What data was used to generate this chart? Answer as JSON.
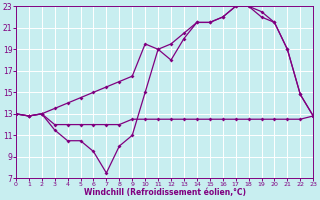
{
  "xlabel": "Windchill (Refroidissement éolien,°C)",
  "bg_color": "#c8eef0",
  "line_color": "#800080",
  "xmin": 0,
  "xmax": 23,
  "ymin": 7,
  "ymax": 23,
  "yticks": [
    7,
    9,
    11,
    13,
    15,
    17,
    19,
    21,
    23
  ],
  "xticks": [
    0,
    1,
    2,
    3,
    4,
    5,
    6,
    7,
    8,
    9,
    10,
    11,
    12,
    13,
    14,
    15,
    16,
    17,
    18,
    19,
    20,
    21,
    22,
    23
  ],
  "curve1_x": [
    0,
    1,
    2,
    3,
    4,
    5,
    6,
    7,
    8,
    9,
    10,
    11,
    12,
    13,
    14,
    15,
    16,
    17,
    18,
    19,
    20,
    21,
    22,
    23
  ],
  "curve1_y": [
    13,
    12.8,
    13,
    13.5,
    14,
    14.5,
    15,
    15.5,
    16,
    16.5,
    19.5,
    19,
    19.5,
    20.5,
    21.5,
    21.5,
    22,
    23,
    23,
    22.5,
    21.5,
    19,
    14.8,
    12.8
  ],
  "curve2_x": [
    0,
    1,
    2,
    3,
    4,
    5,
    6,
    7,
    8,
    9,
    10,
    11,
    12,
    13,
    14,
    15,
    16,
    17,
    18,
    19,
    20,
    21,
    22,
    23
  ],
  "curve2_y": [
    13,
    12.8,
    13,
    12,
    12,
    12,
    12,
    12,
    12,
    12.5,
    12.5,
    12.5,
    12.5,
    12.5,
    12.5,
    12.5,
    12.5,
    12.5,
    12.5,
    12.5,
    12.5,
    12.5,
    12.5,
    12.8
  ],
  "curve3_x": [
    0,
    1,
    2,
    3,
    4,
    5,
    6,
    7,
    8,
    9,
    10,
    11,
    12,
    13,
    14,
    15,
    16,
    17,
    18,
    19,
    20,
    21,
    22,
    23
  ],
  "curve3_y": [
    13,
    12.8,
    13,
    11.5,
    10.5,
    10.5,
    9.5,
    7.5,
    10,
    11,
    15,
    19,
    18,
    20,
    21.5,
    21.5,
    22,
    23,
    23,
    22,
    21.5,
    19,
    14.8,
    12.8
  ]
}
